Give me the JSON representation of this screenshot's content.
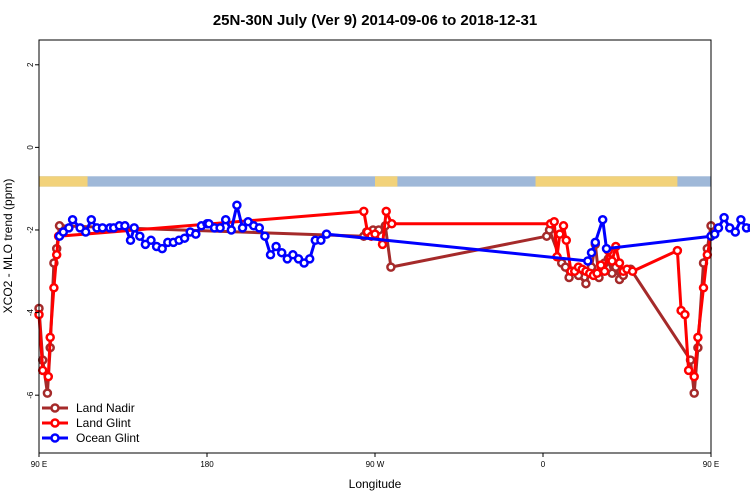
{
  "chart_data": {
    "type": "line",
    "title": "25N-30N July (Ver 9)   2014-09-06 to 2018-12-31",
    "xlabel": "Longitude",
    "ylabel": "XCO2 - MLO trend (ppm)",
    "xlim": [
      90,
      450
    ],
    "ylim": [
      -7.4,
      2.6
    ],
    "x_ticks": [
      {
        "value": 90,
        "label": "90 E"
      },
      {
        "value": 180,
        "label": "180"
      },
      {
        "value": 270,
        "label": "90 W"
      },
      {
        "value": 360,
        "label": "0"
      },
      {
        "value": 450,
        "label": "90 E"
      },
      {
        "value": 540,
        "label": "180"
      }
    ],
    "y_ticks": [
      {
        "value": 2,
        "label": "2"
      },
      {
        "value": 0,
        "label": "0"
      },
      {
        "value": -2,
        "label": "-2"
      },
      {
        "value": -4,
        "label": "-4"
      },
      {
        "value": -6,
        "label": "-6"
      }
    ],
    "land_ocean_band": {
      "y_range": [
        -0.95,
        -0.7
      ],
      "ocean_color": "#9fb8d8",
      "land_color": "#f2d27a",
      "land_segments": [
        [
          90,
          116
        ],
        [
          270,
          282
        ],
        [
          356,
          432
        ],
        [
          530,
          606
        ]
      ]
    },
    "legend_position": "bottom-left",
    "series": [
      {
        "name": "Land Nadir",
        "color": "#a52a2a",
        "points": [
          [
            90,
            -3.9
          ],
          [
            92,
            -5.15
          ],
          [
            94.5,
            -5.95
          ],
          [
            96,
            -4.85
          ],
          [
            98,
            -2.8
          ],
          [
            99.5,
            -2.45
          ],
          [
            101,
            -1.9
          ],
          [
            264,
            -2.15
          ],
          [
            265.5,
            -2.05
          ],
          [
            269,
            -2.0
          ],
          [
            272,
            -2.0
          ],
          [
            275.5,
            -1.9
          ],
          [
            278.5,
            -2.9
          ],
          [
            362,
            -2.15
          ],
          [
            363.5,
            -2.0
          ],
          [
            370,
            -2.8
          ],
          [
            372,
            -2.9
          ],
          [
            374,
            -3.15
          ],
          [
            376,
            -3.0
          ],
          [
            379,
            -3.1
          ],
          [
            383,
            -3.3
          ],
          [
            386,
            -2.9
          ],
          [
            388,
            -2.35
          ],
          [
            390,
            -3.15
          ],
          [
            393,
            -2.8
          ],
          [
            395,
            -2.7
          ],
          [
            397,
            -3.05
          ],
          [
            399,
            -2.9
          ],
          [
            401,
            -3.2
          ],
          [
            403,
            -3.1
          ],
          [
            407,
            -2.95
          ],
          [
            439,
            -5.15
          ],
          [
            441,
            -5.95
          ],
          [
            443,
            -4.85
          ],
          [
            446,
            -2.8
          ],
          [
            448,
            -2.45
          ],
          [
            450,
            -1.9
          ]
        ]
      },
      {
        "name": "Land Glint",
        "color": "#ff0000",
        "points": [
          [
            90,
            -4.05
          ],
          [
            92,
            -5.4
          ],
          [
            95,
            -5.55
          ],
          [
            96,
            -4.6
          ],
          [
            98,
            -3.4
          ],
          [
            99.5,
            -2.6
          ],
          [
            100.5,
            -2.15
          ],
          [
            264,
            -1.55
          ],
          [
            266,
            -2.05
          ],
          [
            268,
            -2.15
          ],
          [
            270,
            -2.1
          ],
          [
            274,
            -2.35
          ],
          [
            276,
            -1.55
          ],
          [
            279,
            -1.85
          ],
          [
            364,
            -1.85
          ],
          [
            366,
            -1.8
          ],
          [
            367.5,
            -2.65
          ],
          [
            369,
            -2.1
          ],
          [
            371,
            -1.9
          ],
          [
            372.5,
            -2.25
          ],
          [
            375,
            -3.0
          ],
          [
            377,
            -3.0
          ],
          [
            379,
            -2.9
          ],
          [
            381,
            -2.95
          ],
          [
            383,
            -3.0
          ],
          [
            385,
            -3.05
          ],
          [
            387,
            -3.1
          ],
          [
            389,
            -3.05
          ],
          [
            391,
            -2.85
          ],
          [
            393,
            -3.0
          ],
          [
            395,
            -2.5
          ],
          [
            397,
            -2.75
          ],
          [
            399,
            -2.4
          ],
          [
            401,
            -2.8
          ],
          [
            403,
            -3.0
          ],
          [
            405,
            -2.95
          ],
          [
            408,
            -3.0
          ],
          [
            432,
            -2.5
          ],
          [
            434,
            -3.95
          ],
          [
            436,
            -4.05
          ],
          [
            438,
            -5.4
          ],
          [
            441,
            -5.55
          ],
          [
            443,
            -4.6
          ],
          [
            446,
            -3.4
          ],
          [
            448,
            -2.6
          ],
          [
            450,
            -2.15
          ]
        ]
      },
      {
        "name": "Ocean Glint",
        "color": "#0000ff",
        "points": [
          [
            101,
            -2.15
          ],
          [
            103,
            -2.05
          ],
          [
            106,
            -1.95
          ],
          [
            108,
            -1.75
          ],
          [
            112,
            -1.95
          ],
          [
            115,
            -2.05
          ],
          [
            118,
            -1.75
          ],
          [
            121,
            -1.95
          ],
          [
            124,
            -1.95
          ],
          [
            128,
            -1.95
          ],
          [
            130,
            -1.95
          ],
          [
            133,
            -1.9
          ],
          [
            136,
            -1.9
          ],
          [
            139,
            -2.25
          ],
          [
            141,
            -1.95
          ],
          [
            144,
            -2.15
          ],
          [
            147,
            -2.35
          ],
          [
            150,
            -2.25
          ],
          [
            153,
            -2.4
          ],
          [
            156,
            -2.45
          ],
          [
            159,
            -2.3
          ],
          [
            162,
            -2.3
          ],
          [
            165,
            -2.25
          ],
          [
            168,
            -2.2
          ],
          [
            171,
            -2.05
          ],
          [
            174,
            -2.1
          ],
          [
            177,
            -1.9
          ],
          [
            180,
            -1.85
          ],
          [
            181,
            -1.85
          ],
          [
            184,
            -1.95
          ],
          [
            187,
            -1.95
          ],
          [
            190,
            -1.75
          ],
          [
            193,
            -2.0
          ],
          [
            196,
            -1.4
          ],
          [
            199,
            -1.95
          ],
          [
            202,
            -1.8
          ],
          [
            205,
            -1.9
          ],
          [
            208,
            -1.95
          ],
          [
            211,
            -2.15
          ],
          [
            214,
            -2.6
          ],
          [
            217,
            -2.4
          ],
          [
            220,
            -2.55
          ],
          [
            223,
            -2.7
          ],
          [
            226,
            -2.6
          ],
          [
            229,
            -2.7
          ],
          [
            232,
            -2.8
          ],
          [
            235,
            -2.7
          ],
          [
            238,
            -2.25
          ],
          [
            241,
            -2.25
          ],
          [
            244,
            -2.1
          ],
          [
            384,
            -2.75
          ],
          [
            386,
            -2.55
          ],
          [
            388,
            -2.3
          ],
          [
            392,
            -1.75
          ],
          [
            394,
            -2.45
          ],
          [
            450,
            -2.15
          ],
          [
            452,
            -2.1
          ],
          [
            454,
            -1.95
          ],
          [
            457,
            -1.7
          ],
          [
            460,
            -1.95
          ],
          [
            463,
            -2.05
          ],
          [
            466,
            -1.75
          ],
          [
            469,
            -1.95
          ],
          [
            472,
            -1.95
          ],
          [
            475,
            -1.95
          ],
          [
            478,
            -1.95
          ],
          [
            481,
            -1.9
          ],
          [
            484,
            -2.25
          ]
        ]
      }
    ]
  }
}
